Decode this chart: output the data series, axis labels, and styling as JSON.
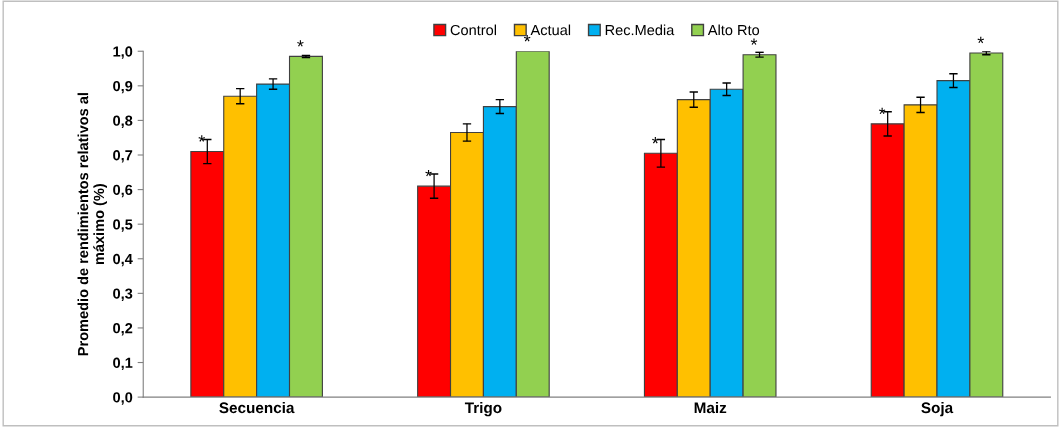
{
  "chart_data": {
    "type": "bar",
    "ylabel": "Promedio de rendimientos relativos al\nmáximo (%)",
    "categories": [
      "Secuencia",
      "Trigo",
      "Maiz",
      "Soja"
    ],
    "series": [
      {
        "name": "Control",
        "color": "#ff0000",
        "values": [
          0.71,
          0.61,
          0.705,
          0.79
        ],
        "errors": [
          0.035,
          0.035,
          0.04,
          0.035
        ],
        "value_labels": [
          "*",
          "*",
          "*",
          "*"
        ]
      },
      {
        "name": "Actual",
        "color": "#ffc000",
        "values": [
          0.87,
          0.765,
          0.86,
          0.845
        ],
        "errors": [
          0.022,
          0.025,
          0.022,
          0.022
        ]
      },
      {
        "name": "Rec.Media",
        "color": "#00b0f0",
        "values": [
          0.905,
          0.84,
          0.89,
          0.915
        ],
        "errors": [
          0.015,
          0.02,
          0.018,
          0.02
        ]
      },
      {
        "name": "Alto Rto",
        "color": "#92d050",
        "values": [
          0.985,
          1.0,
          0.99,
          0.995
        ],
        "errors": [
          0.003,
          null,
          0.007,
          0.005
        ],
        "value_labels": [
          "*",
          "*",
          "*",
          "*"
        ]
      }
    ],
    "ylim": [
      0,
      1.0
    ],
    "yticks": [
      {
        "value": 0,
        "label": "0,0"
      },
      {
        "value": 0.1,
        "label": "0,1"
      },
      {
        "value": 0.2,
        "label": "0,2"
      },
      {
        "value": 0.3,
        "label": "0,3"
      },
      {
        "value": 0.4,
        "label": "0,4"
      },
      {
        "value": 0.5,
        "label": "0,5"
      },
      {
        "value": 0.6,
        "label": "0,6"
      },
      {
        "value": 0.7,
        "label": "0,7"
      },
      {
        "value": 0.8,
        "label": "0,8"
      },
      {
        "value": 0.9,
        "label": "0,9"
      },
      {
        "value": 1.0,
        "label": "1,0"
      }
    ],
    "grid": false,
    "legend": "top"
  }
}
